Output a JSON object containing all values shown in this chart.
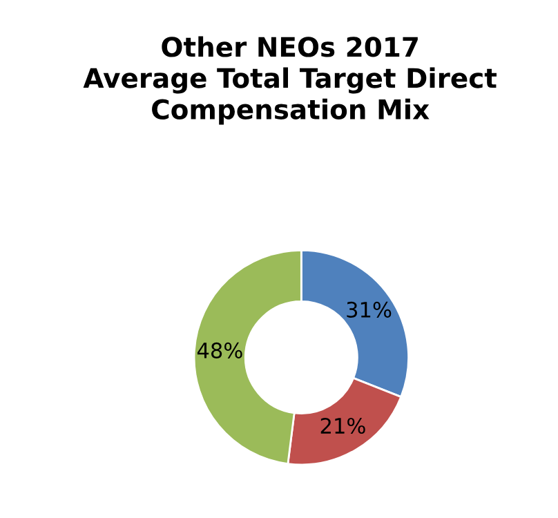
{
  "chart_data": {
    "type": "donut",
    "title": "Other NEOs 2017\nAverage Total Target Direct\nCompensation Mix",
    "categories": [
      null,
      null,
      null
    ],
    "values": [
      31,
      21,
      48
    ],
    "value_labels": [
      "31%",
      "21%",
      "48%"
    ],
    "colors": [
      "#4f81bd",
      "#c0504d",
      "#9bbb59"
    ]
  }
}
